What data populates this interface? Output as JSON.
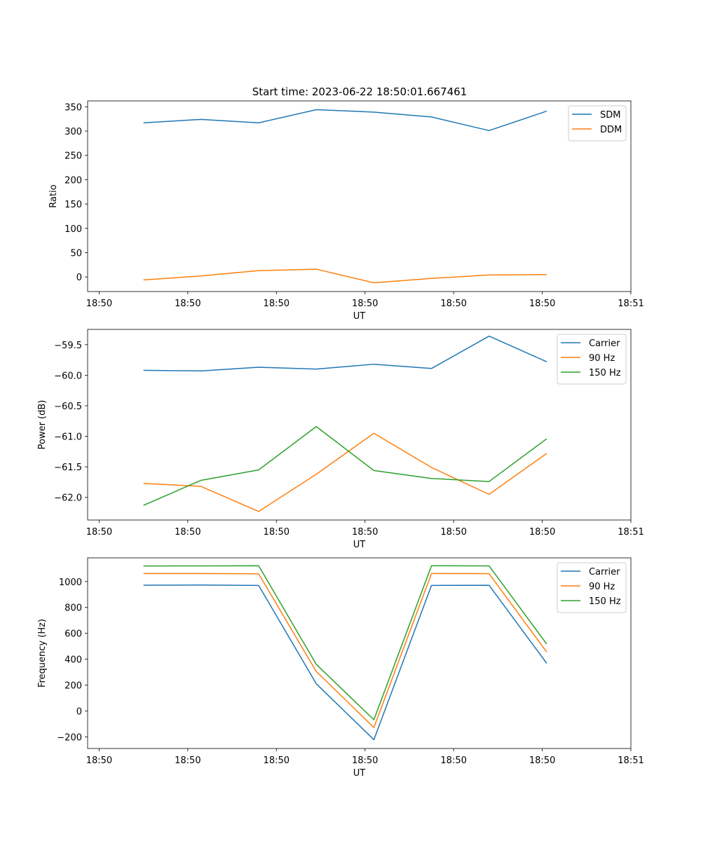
{
  "figure": {
    "title": "Start time: 2023-06-22 18:50:01.667461"
  },
  "chart_data": [
    {
      "type": "line",
      "title": "Start time: 2023-06-22 18:50:01.667461",
      "xlabel": "UT",
      "ylabel": "Ratio",
      "x_tick_labels": [
        "18:50",
        "18:50",
        "18:50",
        "18:50",
        "18:50",
        "18:50",
        "18:51"
      ],
      "x_tick_values": [
        0,
        1,
        2,
        3,
        4,
        5,
        6
      ],
      "xlim": [
        -0.13,
        6.0
      ],
      "y_ticks": [
        0,
        50,
        100,
        150,
        200,
        250,
        300,
        350
      ],
      "ylim": [
        -30,
        362
      ],
      "grid": false,
      "legend_position": "upper right",
      "x": [
        0.5,
        1.15,
        1.8,
        2.45,
        3.1,
        3.75,
        4.4,
        5.05
      ],
      "series": [
        {
          "name": "SDM",
          "color": "#1f77b4",
          "values": [
            317,
            324,
            317,
            344,
            339,
            329,
            301,
            341
          ]
        },
        {
          "name": "DDM",
          "color": "#ff7f0e",
          "values": [
            -6,
            2,
            13,
            16,
            -12,
            -3,
            4,
            5
          ]
        }
      ]
    },
    {
      "type": "line",
      "xlabel": "UT",
      "ylabel": "Power (dB)",
      "x_tick_labels": [
        "18:50",
        "18:50",
        "18:50",
        "18:50",
        "18:50",
        "18:50",
        "18:51"
      ],
      "x_tick_values": [
        0,
        1,
        2,
        3,
        4,
        5,
        6
      ],
      "xlim": [
        -0.13,
        6.0
      ],
      "y_ticks": [
        -62.0,
        -61.5,
        -61.0,
        -60.5,
        -60.0,
        -59.5
      ],
      "y_tick_labels": [
        "−62.0",
        "−61.5",
        "−61.0",
        "−60.5",
        "−60.0",
        "−59.5"
      ],
      "ylim": [
        -62.37,
        -59.25
      ],
      "grid": false,
      "legend_position": "upper right",
      "x": [
        0.5,
        1.15,
        1.8,
        2.45,
        3.1,
        3.75,
        4.4,
        5.05
      ],
      "series": [
        {
          "name": "Carrier",
          "color": "#1f77b4",
          "values": [
            -59.92,
            -59.93,
            -59.87,
            -59.9,
            -59.82,
            -59.89,
            -59.36,
            -59.78
          ]
        },
        {
          "name": "90 Hz",
          "color": "#ff7f0e",
          "values": [
            -61.77,
            -61.82,
            -62.23,
            -61.62,
            -60.95,
            -61.51,
            -61.95,
            -61.28
          ]
        },
        {
          "name": "150 Hz",
          "color": "#2ca02c",
          "values": [
            -62.13,
            -61.72,
            -61.55,
            -60.84,
            -61.56,
            -61.69,
            -61.74,
            -61.04
          ]
        }
      ]
    },
    {
      "type": "line",
      "xlabel": "UT",
      "ylabel": "Frequency (Hz)",
      "x_tick_labels": [
        "18:50",
        "18:50",
        "18:50",
        "18:50",
        "18:50",
        "18:50",
        "18:51"
      ],
      "x_tick_values": [
        0,
        1,
        2,
        3,
        4,
        5,
        6
      ],
      "xlim": [
        -0.13,
        6.0
      ],
      "y_ticks": [
        -200,
        0,
        200,
        400,
        600,
        800,
        1000
      ],
      "y_tick_labels": [
        "−200",
        "0",
        "200",
        "400",
        "600",
        "800",
        "1000"
      ],
      "ylim": [
        -290,
        1183
      ],
      "grid": false,
      "legend_position": "upper right",
      "x": [
        0.5,
        1.15,
        1.8,
        2.45,
        3.1,
        3.75,
        4.4,
        5.05
      ],
      "series": [
        {
          "name": "Carrier",
          "color": "#1f77b4",
          "values": [
            972,
            973,
            970,
            210,
            -222,
            970,
            971,
            368
          ]
        },
        {
          "name": "90 Hz",
          "color": "#ff7f0e",
          "values": [
            1062,
            1062,
            1060,
            305,
            -128,
            1062,
            1061,
            455
          ]
        },
        {
          "name": "150 Hz",
          "color": "#2ca02c",
          "values": [
            1120,
            1121,
            1122,
            360,
            -68,
            1122,
            1121,
            517
          ]
        }
      ]
    }
  ]
}
